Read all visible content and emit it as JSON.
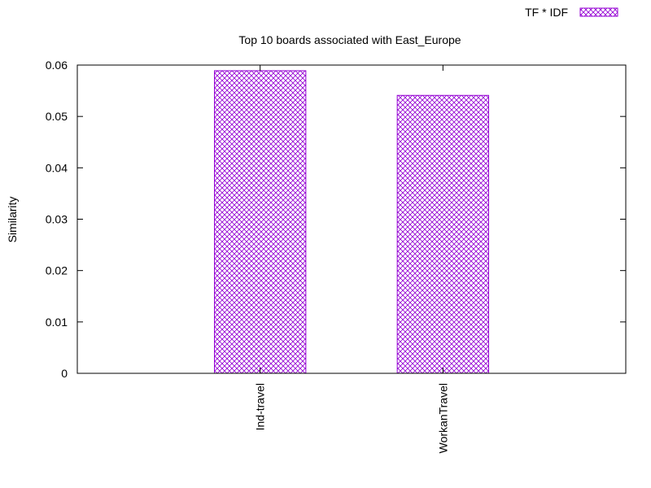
{
  "chart_data": {
    "type": "bar",
    "title": "Top 10 boards associated with East_Europe",
    "xlabel": "",
    "ylabel": "Similarity",
    "categories": [
      "Ind-travel",
      "WorkanTravel"
    ],
    "series": [
      {
        "name": "TF * IDF",
        "values": [
          0.0589,
          0.0541
        ],
        "color": "#9400d3",
        "pattern": "crosshatch"
      }
    ],
    "ylim": [
      0,
      0.06
    ],
    "yticks": [
      "0",
      "0.01",
      "0.02",
      "0.03",
      "0.04",
      "0.05",
      "0.06"
    ],
    "xlim": [
      -1,
      2
    ],
    "grid": false,
    "legend_position": "top-right",
    "x_tick_label_rotation": "vertical"
  }
}
